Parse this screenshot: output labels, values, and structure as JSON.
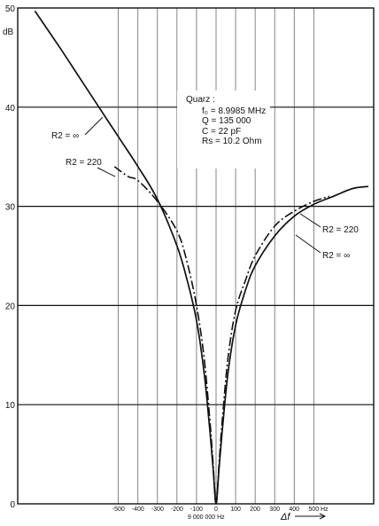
{
  "chart_data": {
    "type": "line",
    "ylabel": "dB",
    "ylim": [
      0,
      50
    ],
    "xlim": [
      -1050,
      750
    ],
    "y_ticks": [
      {
        "value": 0,
        "label": "0"
      },
      {
        "value": 10,
        "label": "10"
      },
      {
        "value": 20,
        "label": "20"
      },
      {
        "value": 30,
        "label": "30"
      },
      {
        "value": 40,
        "label": "40"
      },
      {
        "value": 50,
        "label": "50"
      }
    ],
    "x_ticks": [
      {
        "value": -500,
        "label": "-500"
      },
      {
        "value": -400,
        "label": "-400"
      },
      {
        "value": -300,
        "label": "-300"
      },
      {
        "value": -200,
        "label": "-200"
      },
      {
        "value": -100,
        "label": "-100"
      },
      {
        "value": 0,
        "label": "0"
      },
      {
        "value": 100,
        "label": "100"
      },
      {
        "value": 200,
        "label": "200"
      },
      {
        "value": 300,
        "label": "300"
      },
      {
        "value": 400,
        "label": "400"
      },
      {
        "value": 500,
        "label": "500"
      }
    ],
    "x_unit": "Hz",
    "center_label": "9 000 000 Hz",
    "xlabel": "Δf",
    "infobox": [
      "Quarz :",
      "f₀ = 8.9985 MHz",
      "Q = 135 000",
      "C = 22 pF",
      "Rs = 10.2 Ohm"
    ],
    "series": [
      {
        "name": "R2 = ∞",
        "style": "solid",
        "x": [
          -928,
          -800,
          -700,
          -600,
          -500,
          -400,
          -300,
          -200,
          -150,
          -100,
          -60,
          -30,
          -15,
          0,
          15,
          30,
          60,
          100,
          150,
          200,
          300,
          400,
          500,
          600,
          700,
          780
        ],
        "y": [
          49.7,
          46.0,
          43.0,
          40.0,
          37.0,
          34.0,
          30.7,
          26.0,
          22.7,
          18.5,
          13.0,
          7.0,
          3.5,
          0,
          3.5,
          7.0,
          13.0,
          18.0,
          21.5,
          24.0,
          27.0,
          29.0,
          30.2,
          31.0,
          31.8,
          32.0
        ]
      },
      {
        "name": "R2 = 220",
        "style": "dash-dot",
        "x": [
          -520,
          -450,
          -400,
          -300,
          -200,
          -150,
          -100,
          -60,
          -30,
          -15,
          0,
          15,
          30,
          60,
          100,
          150,
          200,
          300,
          400,
          500,
          580
        ],
        "y": [
          34.0,
          33.0,
          32.6,
          30.5,
          27.5,
          24.5,
          20.0,
          14.5,
          8.0,
          4.0,
          0,
          4.0,
          8.0,
          14.5,
          19.5,
          22.5,
          25.0,
          28.0,
          29.5,
          30.5,
          31.0
        ]
      }
    ],
    "annotations": [
      {
        "text": "R2 = ∞",
        "series": "R2 = ∞"
      },
      {
        "text": "R2 = 220",
        "series": "R2 = 220"
      },
      {
        "text": "R2 = 220",
        "series": "R2 = 220"
      },
      {
        "text": "R2 = ∞",
        "series": "R2 = ∞"
      }
    ],
    "grid": true
  }
}
